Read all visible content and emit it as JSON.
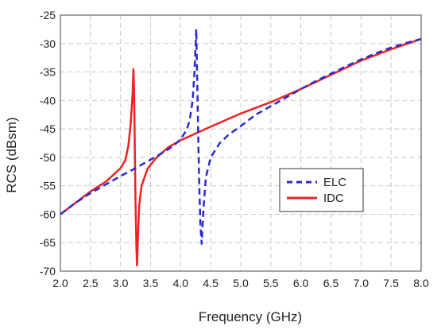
{
  "chart_data": {
    "type": "line",
    "title": "",
    "xlabel": "Frequency (GHz)",
    "ylabel": "RCS (dBsm)",
    "xlim": [
      2.0,
      8.0
    ],
    "ylim": [
      -70,
      -25
    ],
    "x_ticks": [
      "2.0",
      "2.5",
      "3.0",
      "3.5",
      "4.0",
      "4.5",
      "5.0",
      "5.5",
      "6.0",
      "6.5",
      "7.0",
      "7.5",
      "8.0"
    ],
    "y_ticks": [
      "-25",
      "-30",
      "-35",
      "-40",
      "-45",
      "-50",
      "-55",
      "-60",
      "-65",
      "-70"
    ],
    "grid": true,
    "legend_position": "center-right",
    "series": [
      {
        "name": "ELC",
        "style": "dashed",
        "color": "#2a2acf",
        "points": [
          [
            2.0,
            -60.0
          ],
          [
            2.25,
            -58.0
          ],
          [
            2.5,
            -56.3
          ],
          [
            2.75,
            -54.8
          ],
          [
            3.0,
            -53.3
          ],
          [
            3.25,
            -51.9
          ],
          [
            3.5,
            -50.4
          ],
          [
            3.75,
            -48.9
          ],
          [
            3.9,
            -47.8
          ],
          [
            4.0,
            -46.8
          ],
          [
            4.1,
            -45.2
          ],
          [
            4.15,
            -43.5
          ],
          [
            4.2,
            -40.0
          ],
          [
            4.23,
            -35.0
          ],
          [
            4.25,
            -30.0
          ],
          [
            4.26,
            -27.5
          ],
          [
            4.275,
            -36.0
          ],
          [
            4.29,
            -45.0
          ],
          [
            4.31,
            -55.0
          ],
          [
            4.33,
            -62.0
          ],
          [
            4.35,
            -65.2
          ],
          [
            4.38,
            -59.0
          ],
          [
            4.42,
            -53.5
          ],
          [
            4.5,
            -50.0
          ],
          [
            4.65,
            -47.5
          ],
          [
            4.8,
            -46.0
          ],
          [
            5.0,
            -44.5
          ],
          [
            5.25,
            -42.5
          ],
          [
            5.5,
            -41.0
          ],
          [
            5.75,
            -39.5
          ],
          [
            6.0,
            -38.0
          ],
          [
            6.25,
            -36.6
          ],
          [
            6.5,
            -35.3
          ],
          [
            6.75,
            -34.0
          ],
          [
            7.0,
            -32.8
          ],
          [
            7.25,
            -31.7
          ],
          [
            7.5,
            -30.7
          ],
          [
            7.75,
            -29.9
          ],
          [
            8.0,
            -29.2
          ]
        ]
      },
      {
        "name": "IDC",
        "style": "solid",
        "color": "#ee2222",
        "points": [
          [
            2.0,
            -60.0
          ],
          [
            2.25,
            -58.0
          ],
          [
            2.5,
            -56.0
          ],
          [
            2.75,
            -54.3
          ],
          [
            2.9,
            -52.9
          ],
          [
            3.0,
            -51.9
          ],
          [
            3.08,
            -50.5
          ],
          [
            3.13,
            -48.0
          ],
          [
            3.17,
            -44.0
          ],
          [
            3.2,
            -39.0
          ],
          [
            3.215,
            -34.5
          ],
          [
            3.225,
            -38.0
          ],
          [
            3.235,
            -46.0
          ],
          [
            3.25,
            -58.0
          ],
          [
            3.265,
            -66.0
          ],
          [
            3.275,
            -69.0
          ],
          [
            3.29,
            -64.0
          ],
          [
            3.31,
            -58.5
          ],
          [
            3.35,
            -55.0
          ],
          [
            3.45,
            -52.0
          ],
          [
            3.6,
            -50.0
          ],
          [
            3.8,
            -48.2
          ],
          [
            4.0,
            -47.0
          ],
          [
            4.25,
            -45.8
          ],
          [
            4.5,
            -44.6
          ],
          [
            5.0,
            -42.3
          ],
          [
            5.5,
            -40.3
          ],
          [
            6.0,
            -38.0
          ],
          [
            6.5,
            -35.5
          ],
          [
            7.0,
            -33.0
          ],
          [
            7.5,
            -31.0
          ],
          [
            8.0,
            -29.2
          ]
        ]
      }
    ]
  }
}
